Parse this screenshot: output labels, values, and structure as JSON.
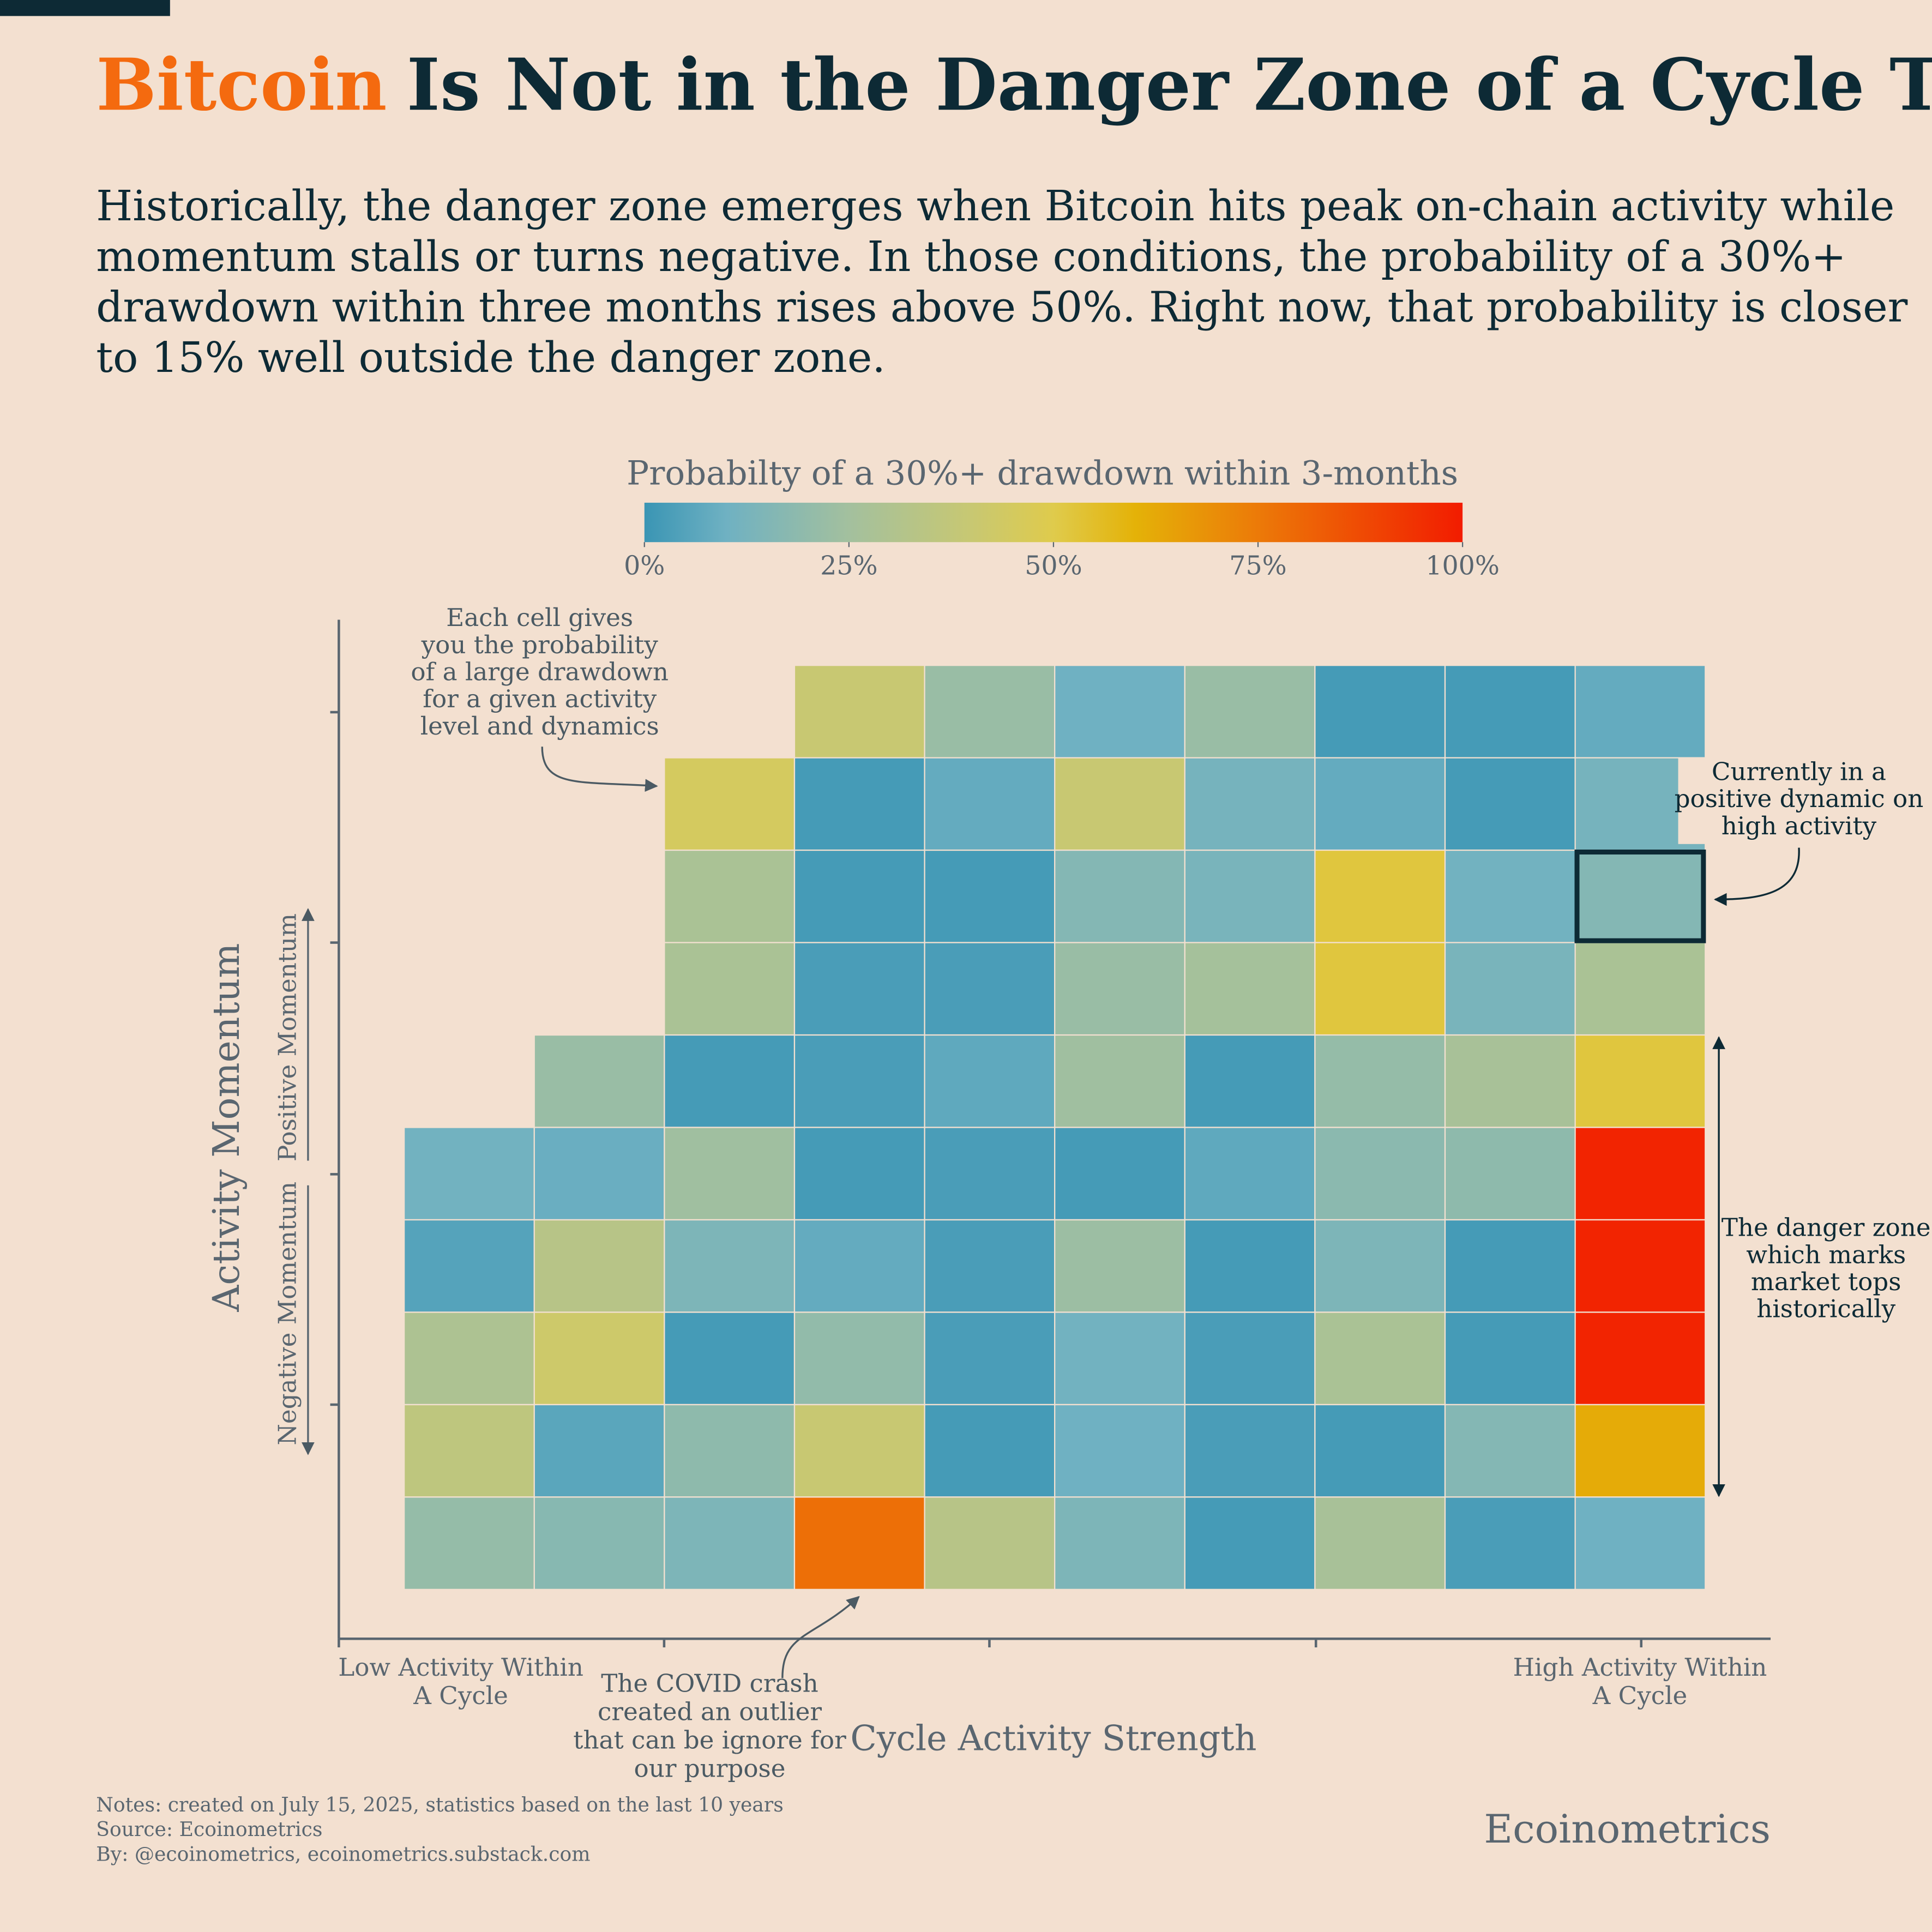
{
  "chart_data": {
    "type": "heatmap",
    "title_highlight": "Bitcoin",
    "title": "Is Not in the Danger Zone of a Cycle Top",
    "title_highlight_color": "#f46a0f",
    "subtitle": [
      "Historically, the danger zone emerges when Bitcoin hits peak on-chain activity while",
      "momentum stalls or turns negative. In those conditions, the probability of a 30%+",
      "drawdown within three months rises above 50%. Right now, that probability is closer",
      "to 15% well outside the danger zone."
    ],
    "colorbar_title": "Probabilty of a 30%+ drawdown within 3-months",
    "zlim": [
      0,
      100
    ],
    "colorbar_ticks": [
      {
        "value": 0,
        "label": "0%"
      },
      {
        "value": 25,
        "label": "25%"
      },
      {
        "value": 50,
        "label": "50%"
      },
      {
        "value": 75,
        "label": "75%"
      },
      {
        "value": 100,
        "label": "100%"
      }
    ],
    "colorscale": [
      [
        0,
        "#3a95b4"
      ],
      [
        10,
        "#6fb1c2"
      ],
      [
        25,
        "#a3c09e"
      ],
      [
        40,
        "#c8c872"
      ],
      [
        50,
        "#dfcb4c"
      ],
      [
        60,
        "#e4b208"
      ],
      [
        75,
        "#ec7a08"
      ],
      [
        100,
        "#f21c00"
      ]
    ],
    "x_categories": [
      null,
      null,
      null,
      null,
      null,
      null,
      null,
      null,
      null,
      null
    ],
    "y_categories": [
      null,
      null,
      null,
      null,
      null,
      null,
      null,
      null,
      null,
      null
    ],
    "values": [
      [
        null,
        null,
        null,
        40,
        22,
        10,
        22,
        2,
        2,
        8
      ],
      [
        null,
        null,
        45,
        2,
        8,
        40,
        12,
        8,
        2,
        12
      ],
      [
        null,
        null,
        28,
        2,
        2,
        16,
        13,
        52,
        11,
        16
      ],
      [
        null,
        null,
        28,
        3,
        3,
        22,
        26,
        52,
        13,
        28
      ],
      [
        null,
        22,
        2,
        3,
        7,
        24,
        2,
        21,
        27,
        52
      ],
      [
        11,
        9,
        24,
        2,
        3,
        2,
        7,
        18,
        19,
        98
      ],
      [
        5,
        33,
        14,
        8,
        3,
        23,
        2,
        14,
        2,
        98
      ],
      [
        29,
        42,
        2,
        20,
        3,
        11,
        3,
        28,
        2,
        98
      ],
      [
        36,
        6,
        19,
        40,
        2,
        10,
        3,
        2,
        16,
        62
      ],
      [
        21,
        17,
        14,
        78,
        33,
        14,
        2,
        27,
        3,
        10
      ]
    ],
    "current": {
      "row": 2,
      "col": 9
    },
    "xlabel": "Cycle Activity Strength",
    "x_low_label": [
      "Low Activity Within",
      "A Cycle"
    ],
    "x_high_label": [
      "High Activity Within",
      "A Cycle"
    ],
    "ylabel": "Activity Momentum",
    "y_positive_label": "Positive Momentum",
    "y_negative_label": "Negative Momentum",
    "annotation_cells": [
      "Each cell gives",
      "you the probability",
      "of a large drawdown",
      "for a given activity",
      "level and dynamics"
    ],
    "annotation_current": [
      "Currently in a",
      "positive dynamic on",
      "high activity"
    ],
    "annotation_danger": [
      "The danger zone",
      "which marks",
      "market tops",
      "historically"
    ],
    "annotation_covid": [
      "The COVID crash",
      "created an outlier",
      "that can be ignore for",
      "our purpose"
    ],
    "notes": [
      "Notes: created on July 15, 2025, statistics based on the last 10 years",
      "Source: Ecoinometrics",
      "By: @ecoinometrics, ecoinometrics.substack.com"
    ],
    "brand": "Ecoinometrics"
  }
}
